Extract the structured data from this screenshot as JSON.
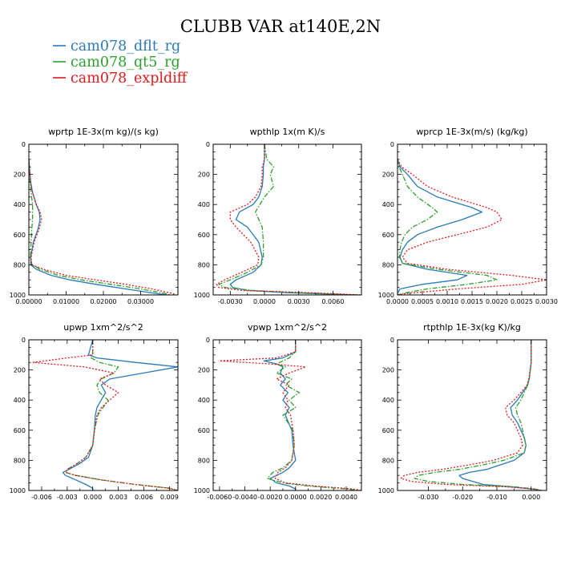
{
  "title": "CLUBB VAR at140E,2N",
  "legend": [
    {
      "label": "cam078_dflt_rg",
      "color": "#2a7ab8",
      "dash": "solid"
    },
    {
      "label": "cam078_qt5_rg",
      "color": "#2ca02c",
      "dash": "dashdot"
    },
    {
      "label": "cam078_expldiff",
      "color": "#e31a1c",
      "dash": "dotted"
    }
  ],
  "chart_data": [
    {
      "type": "line",
      "title": "wprtp   1E-3x(m kg)/(s kg)",
      "xlim": [
        0,
        0.04
      ],
      "ylim": [
        0,
        1000
      ],
      "xticks": [
        0,
        0.01,
        0.02,
        0.03
      ],
      "xtick_labels": [
        "0.00000",
        "0.01000",
        "0.02000",
        "0.03000"
      ],
      "yticks": [
        0,
        200,
        400,
        600,
        800,
        1000
      ],
      "ytick_labels": [
        "0",
        "200",
        "400",
        "600",
        "800",
        "1000"
      ],
      "y": [
        100,
        250,
        320,
        400,
        450,
        500,
        560,
        650,
        750,
        800,
        830,
        870,
        900,
        930,
        960,
        990,
        1000
      ],
      "series": [
        {
          "name": "cam078_dflt_rg",
          "x": [
            0.0,
            0.0005,
            0.001,
            0.002,
            0.0028,
            0.003,
            0.0025,
            0.0012,
            0.0005,
            0.0005,
            0.002,
            0.006,
            0.011,
            0.018,
            0.026,
            0.034,
            0.037
          ]
        },
        {
          "name": "cam078_qt5_rg",
          "x": [
            0.0,
            0.0003,
            0.0006,
            0.001,
            0.001,
            0.001,
            0.0008,
            0.0006,
            0.0004,
            0.0008,
            0.003,
            0.008,
            0.014,
            0.022,
            0.03,
            0.0365,
            0.038
          ]
        },
        {
          "name": "cam078_expldiff",
          "x": [
            0.0,
            0.0004,
            0.001,
            0.002,
            0.003,
            0.0034,
            0.0028,
            0.0014,
            0.0006,
            0.0008,
            0.004,
            0.01,
            0.018,
            0.026,
            0.033,
            0.0385,
            0.0395
          ]
        }
      ]
    },
    {
      "type": "line",
      "title": "wpthlp   1x(m K)/s",
      "xlim": [
        -0.0045,
        0.0085
      ],
      "ylim": [
        0,
        1000
      ],
      "xticks": [
        -0.003,
        0,
        0.003,
        0.006
      ],
      "xtick_labels": [
        "-0.0030",
        "0.0000",
        "0.0030",
        "0.0060"
      ],
      "yticks": [
        0,
        200,
        400,
        600,
        800,
        1000
      ],
      "ytick_labels": [
        "0",
        "200",
        "400",
        "600",
        "800",
        "1000"
      ],
      "y": [
        0,
        100,
        150,
        200,
        280,
        350,
        400,
        450,
        500,
        550,
        650,
        750,
        800,
        850,
        900,
        930,
        950,
        970,
        985,
        1000
      ],
      "series": [
        {
          "name": "cam078_dflt_rg",
          "x": [
            0.0,
            0.0,
            -0.0001,
            -0.0001,
            -0.0002,
            -0.0005,
            -0.001,
            -0.0022,
            -0.0025,
            -0.0015,
            -0.0005,
            -0.0002,
            -0.0003,
            -0.001,
            -0.0025,
            -0.003,
            -0.0028,
            -0.0015,
            0.002,
            0.008
          ]
        },
        {
          "name": "cam078_qt5_rg",
          "x": [
            0.0,
            0.0002,
            0.0008,
            0.0005,
            0.0008,
            0.0,
            -0.0004,
            -0.0008,
            -0.0005,
            -0.0002,
            -0.0001,
            -0.0001,
            -0.0003,
            -0.0015,
            -0.003,
            -0.004,
            -0.0035,
            -0.001,
            0.003,
            0.008
          ]
        },
        {
          "name": "cam078_expldiff",
          "x": [
            0.0,
            0.0,
            -0.0002,
            -0.0002,
            -0.0003,
            -0.0008,
            -0.0015,
            -0.003,
            -0.003,
            -0.0025,
            -0.0012,
            -0.0005,
            -0.0006,
            -0.002,
            -0.0035,
            -0.0042,
            -0.004,
            -0.002,
            0.004,
            0.0085
          ]
        }
      ]
    },
    {
      "type": "line",
      "title": "wprcp   1E-3x(m/s) (kg/kg)",
      "xlim": [
        0,
        0.003
      ],
      "ylim": [
        0,
        1000
      ],
      "xticks": [
        0,
        0.0005,
        0.001,
        0.0015,
        0.002,
        0.0025,
        0.003
      ],
      "xtick_labels": [
        "0.0000",
        "0.0005",
        "0.0010",
        "0.0015",
        "0.0020",
        "0.0025",
        "0.0030"
      ],
      "yticks": [
        0,
        200,
        400,
        600,
        800,
        1000
      ],
      "ytick_labels": [
        "0",
        "200",
        "400",
        "600",
        "800",
        "1000"
      ],
      "y": [
        100,
        150,
        200,
        280,
        350,
        420,
        450,
        500,
        550,
        600,
        650,
        700,
        750,
        790,
        830,
        870,
        900,
        930,
        960,
        990,
        1000
      ],
      "series": [
        {
          "name": "cam078_dflt_rg",
          "x": [
            0.0,
            5e-05,
            0.0002,
            0.0004,
            0.0008,
            0.0015,
            0.0017,
            0.0013,
            0.0008,
            0.0004,
            0.0002,
            0.0001,
            5e-05,
            0.0001,
            0.0006,
            0.0014,
            0.0012,
            0.0005,
            5e-05,
            0.0,
            0.0
          ]
        },
        {
          "name": "cam078_qt5_rg",
          "x": [
            0.0,
            3e-05,
            0.0001,
            0.0002,
            0.0004,
            0.0007,
            0.0008,
            0.0006,
            0.0003,
            0.00015,
            8e-05,
            5e-05,
            4e-05,
            0.0001,
            0.0008,
            0.0018,
            0.002,
            0.0014,
            0.0006,
            0.0001,
            0.0
          ]
        },
        {
          "name": "cam078_expldiff",
          "x": [
            0.0,
            8e-05,
            0.0003,
            0.0006,
            0.0011,
            0.0018,
            0.002,
            0.0021,
            0.0018,
            0.0012,
            0.0006,
            0.0002,
            0.0001,
            0.0002,
            0.001,
            0.0023,
            0.003,
            0.0025,
            0.0012,
            0.0002,
            0.0
          ]
        }
      ]
    },
    {
      "type": "line",
      "title": "upwp   1xm^2/s^2",
      "xlim": [
        -0.0075,
        0.01
      ],
      "ylim": [
        0,
        1000
      ],
      "xticks": [
        -0.006,
        -0.003,
        0,
        0.003,
        0.006,
        0.009
      ],
      "xtick_labels": [
        "-0.006",
        "-0.003",
        "0.000",
        "0.003",
        "0.006",
        "0.009"
      ],
      "yticks": [
        0,
        200,
        400,
        600,
        800,
        1000
      ],
      "ytick_labels": [
        "0",
        "200",
        "400",
        "600",
        "800",
        "1000"
      ],
      "y": [
        0,
        100,
        120,
        150,
        180,
        220,
        260,
        300,
        350,
        400,
        450,
        500,
        600,
        700,
        780,
        820,
        860,
        880,
        900,
        930,
        960,
        985,
        1000
      ],
      "series": [
        {
          "name": "cam078_dflt_rg",
          "x": [
            0.0,
            -0.0005,
            0.0005,
            0.005,
            0.01,
            0.006,
            0.002,
            0.001,
            0.0015,
            0.001,
            0.0005,
            0.0003,
            0.0002,
            0.0,
            -0.0005,
            -0.0015,
            -0.0028,
            -0.0035,
            -0.0032,
            -0.002,
            -0.0008,
            0.0,
            0.0
          ]
        },
        {
          "name": "cam078_qt5_rg",
          "x": [
            0.0,
            0.0,
            -0.0002,
            0.0008,
            0.003,
            0.0025,
            0.001,
            0.0005,
            0.0008,
            0.0018,
            0.0012,
            0.0006,
            0.0002,
            0.0,
            -0.0008,
            -0.0018,
            -0.003,
            -0.0032,
            -0.002,
            0.001,
            0.005,
            0.009,
            0.01
          ]
        },
        {
          "name": "cam078_expldiff",
          "x": [
            0.0,
            0.0,
            -0.003,
            -0.007,
            -0.001,
            0.0025,
            0.0008,
            0.0015,
            0.003,
            0.002,
            0.001,
            0.0005,
            0.0002,
            0.0,
            -0.0008,
            -0.0018,
            -0.003,
            -0.0032,
            -0.002,
            0.001,
            0.005,
            0.009,
            0.01
          ]
        }
      ]
    },
    {
      "type": "line",
      "title": "vpwp   1xm^2/s^2",
      "xlim": [
        -0.0065,
        0.0052
      ],
      "ylim": [
        0,
        1000
      ],
      "xticks": [
        -0.006,
        -0.004,
        -0.002,
        0,
        0.002,
        0.004
      ],
      "xtick_labels": [
        "-0.0060",
        "-0.0040",
        "-0.0020",
        "0.0000",
        "0.0020",
        "0.0040"
      ],
      "yticks": [
        0,
        200,
        400,
        600,
        800,
        1000
      ],
      "ytick_labels": [
        "0",
        "200",
        "400",
        "600",
        "800",
        "1000"
      ],
      "y": [
        0,
        80,
        120,
        140,
        160,
        180,
        220,
        260,
        300,
        350,
        400,
        450,
        500,
        600,
        700,
        800,
        850,
        880,
        920,
        950,
        970,
        990,
        1000
      ],
      "series": [
        {
          "name": "cam078_dflt_rg",
          "x": [
            0.0,
            0.0,
            -0.001,
            -0.0025,
            -0.0015,
            -0.001,
            -0.0012,
            -0.0008,
            -0.0012,
            -0.0006,
            -0.001,
            -0.0005,
            -0.0008,
            -0.0003,
            -0.0002,
            0.0,
            -0.0005,
            -0.001,
            -0.002,
            -0.0015,
            -0.0005,
            0.0,
            0.0
          ]
        },
        {
          "name": "cam078_qt5_rg",
          "x": [
            0.0,
            0.0,
            -0.0005,
            -0.001,
            -0.0015,
            -0.0008,
            -0.0015,
            -0.0003,
            -0.0008,
            0.0003,
            -0.0005,
            0.0,
            -0.001,
            -0.0002,
            -0.0001,
            -0.0003,
            -0.001,
            -0.0018,
            -0.0022,
            -0.001,
            0.001,
            0.004,
            0.005
          ]
        },
        {
          "name": "cam078_expldiff",
          "x": [
            0.0,
            0.0,
            -0.0015,
            -0.006,
            -0.002,
            0.0008,
            -0.0005,
            -0.0015,
            -0.0005,
            -0.001,
            -0.0006,
            -0.0008,
            -0.0004,
            -0.0002,
            -0.0001,
            -0.0003,
            -0.0008,
            -0.0014,
            -0.0016,
            -0.0008,
            0.0015,
            0.0045,
            0.0052
          ]
        }
      ]
    },
    {
      "type": "line",
      "title": "rtpthlp   1E-3x(kg K)/kg",
      "xlim": [
        -0.039,
        0.0045
      ],
      "ylim": [
        0,
        1000
      ],
      "xticks": [
        -0.03,
        -0.02,
        -0.01,
        0
      ],
      "xtick_labels": [
        "-0.030",
        "-0.020",
        "-0.010",
        "0.000"
      ],
      "yticks": [
        0,
        200,
        400,
        600,
        800,
        1000
      ],
      "ytick_labels": [
        "0",
        "200",
        "400",
        "600",
        "800",
        "1000"
      ],
      "y": [
        0,
        150,
        250,
        300,
        350,
        400,
        450,
        500,
        550,
        600,
        650,
        700,
        750,
        800,
        830,
        860,
        880,
        900,
        920,
        940,
        960,
        975,
        990,
        1000
      ],
      "series": [
        {
          "name": "cam078_dflt_rg",
          "x": [
            0.0,
            0.0,
            -0.0005,
            -0.001,
            -0.0025,
            -0.004,
            -0.006,
            -0.0055,
            -0.004,
            -0.003,
            -0.002,
            -0.0015,
            -0.002,
            -0.005,
            -0.009,
            -0.013,
            -0.018,
            -0.021,
            -0.02,
            -0.017,
            -0.014,
            -0.006,
            0.0,
            0.003
          ]
        },
        {
          "name": "cam078_qt5_rg",
          "x": [
            0.0,
            0.0,
            -0.0005,
            -0.001,
            -0.002,
            -0.003,
            -0.0045,
            -0.004,
            -0.003,
            -0.0025,
            -0.002,
            -0.0015,
            -0.002,
            -0.008,
            -0.014,
            -0.021,
            -0.028,
            -0.033,
            -0.034,
            -0.03,
            -0.02,
            -0.005,
            0.001,
            0.003
          ]
        },
        {
          "name": "cam078_expldiff",
          "x": [
            0.0,
            0.0,
            -0.0006,
            -0.0012,
            -0.003,
            -0.005,
            -0.0075,
            -0.007,
            -0.005,
            -0.004,
            -0.003,
            -0.0025,
            -0.004,
            -0.011,
            -0.018,
            -0.026,
            -0.033,
            -0.037,
            -0.038,
            -0.035,
            -0.025,
            -0.008,
            0.001,
            0.003
          ]
        }
      ]
    }
  ]
}
